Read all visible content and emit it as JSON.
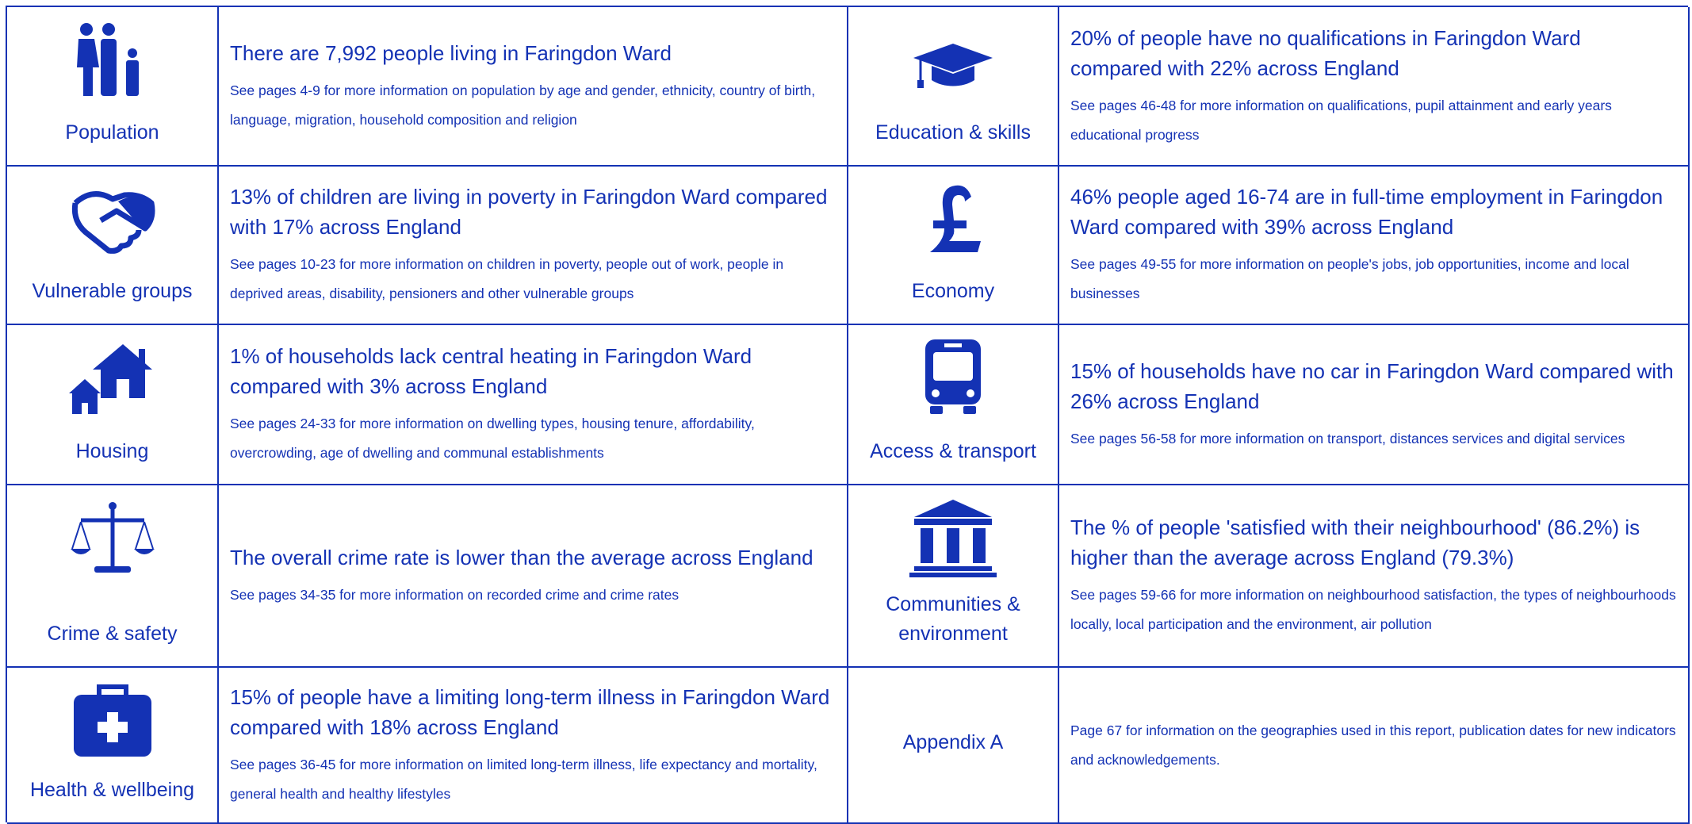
{
  "sections": [
    {
      "label": "Population",
      "headline": "There are 7,992 people living in Faringdon Ward",
      "detail": "See pages 4-9 for more information on population by age and gender, ethnicity, country of birth, language, migration, household composition and religion"
    },
    {
      "label": "Education & skills",
      "headline": "20% of people have no qualifications in Faringdon Ward compared with 22% across England",
      "detail": "See pages 46-48 for more information on qualifications, pupil attainment and early years educational progress"
    },
    {
      "label": "Vulnerable groups",
      "headline": "13% of children are living in poverty in Faringdon Ward compared with 17% across England",
      "detail": "See pages 10-23 for more information on children in poverty, people out of work, people in deprived areas, disability, pensioners and other vulnerable groups"
    },
    {
      "label": "Economy",
      "headline": "46% people aged 16-74 are in full-time employment in Faringdon Ward compared with 39% across England",
      "detail": "See pages 49-55 for more information on people's jobs, job opportunities, income and local businesses"
    },
    {
      "label": "Housing",
      "headline": "1% of households lack central heating in Faringdon Ward compared with 3% across England",
      "detail": "See pages 24-33 for more information on dwelling types, housing tenure, affordability, overcrowding, age of dwelling and communal establishments"
    },
    {
      "label": "Access & transport",
      "headline": "15% of households have no car in Faringdon Ward compared with 26% across England",
      "detail": "See pages 56-58 for more information on transport, distances services and digital services"
    },
    {
      "label": "Crime & safety",
      "headline": "The overall crime rate is lower than the average across England",
      "detail": "See pages 34-35 for more information on recorded crime and crime rates"
    },
    {
      "label": "Communities & environment",
      "headline": "The % of people 'satisfied with their neighbourhood' (86.2%) is higher than the average across England (79.3%)",
      "detail": "See pages 59-66 for more information on neighbourhood satisfaction, the types of neighbourhoods locally, local participation and the environment, air pollution"
    },
    {
      "label": "Health & wellbeing",
      "headline": "15% of people have a limiting long-term illness in Faringdon Ward compared with 18% across England",
      "detail": "See pages 36-45 for more information on limited long-term illness, life expectancy and mortality, general health and healthy lifestyles"
    },
    {
      "label": "Appendix A",
      "detail": "Page 67 for information on the geographies used in this report, publication dates for new indicators and acknowledgements."
    }
  ]
}
